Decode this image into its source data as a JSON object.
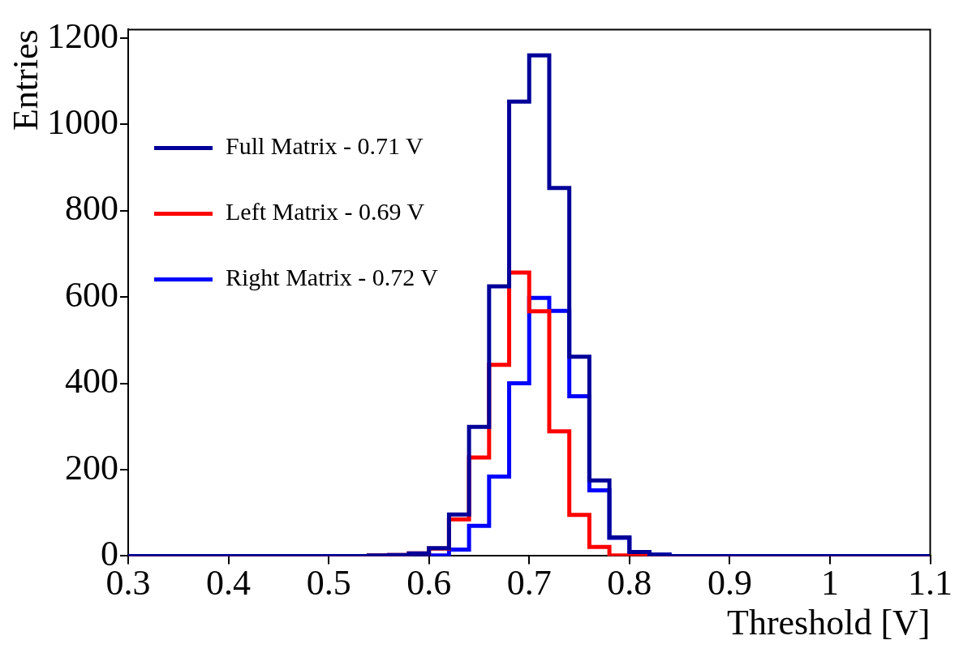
{
  "chart_data": {
    "type": "histogram",
    "xlabel": "Threshold [V]",
    "ylabel": "Entries",
    "bins": [
      0.3,
      0.32,
      0.34,
      0.36,
      0.38,
      0.4,
      0.42,
      0.44,
      0.46,
      0.48,
      0.5,
      0.52,
      0.54,
      0.56,
      0.58,
      0.6,
      0.62,
      0.64,
      0.66,
      0.68,
      0.7,
      0.72,
      0.74,
      0.76,
      0.78,
      0.8,
      0.82,
      0.84,
      0.86,
      0.88,
      0.9,
      0.92,
      0.94,
      0.96,
      0.98,
      1,
      1.02,
      1.04,
      1.06,
      1.08,
      1.1
    ],
    "series": [
      {
        "name": "Full Matrix - 0.71 V",
        "color": "#000099",
        "values": [
          0,
          0,
          0,
          0,
          0,
          0,
          0,
          0,
          0,
          0,
          0,
          0,
          1,
          2,
          6,
          18,
          96,
          299,
          625,
          1053,
          1160,
          853,
          462,
          175,
          43,
          9,
          3,
          0,
          0,
          0,
          0,
          0,
          0,
          0,
          0,
          0,
          0,
          0,
          0,
          0
        ]
      },
      {
        "name": "Left Matrix - 0.69 V",
        "color": "#ff0000",
        "values": [
          0,
          0,
          0,
          0,
          0,
          0,
          0,
          0,
          0,
          0,
          0,
          0,
          1,
          2,
          6,
          17,
          85,
          228,
          443,
          657,
          567,
          289,
          95,
          21,
          1,
          0,
          0,
          0,
          0,
          0,
          0,
          0,
          0,
          0,
          0,
          0,
          0,
          0,
          0,
          0
        ]
      },
      {
        "name": "Right Matrix - 0.72 V",
        "color": "#0000ff",
        "values": [
          0,
          0,
          0,
          0,
          0,
          0,
          0,
          0,
          0,
          0,
          0,
          0,
          0,
          0,
          0,
          1,
          15,
          70,
          184,
          400,
          598,
          568,
          370,
          152,
          42,
          9,
          3,
          0,
          0,
          0,
          0,
          0,
          0,
          0,
          0,
          0,
          0,
          0,
          0,
          0
        ]
      }
    ],
    "xlim": [
      0.3,
      1.1
    ],
    "xticks": [
      0.3,
      0.4,
      0.5,
      0.6,
      0.7,
      0.8,
      0.9,
      1,
      1.1
    ],
    "ylim": [
      0,
      1220
    ],
    "yticks": [
      0,
      200,
      400,
      600,
      800,
      1000,
      1200
    ],
    "grid": false,
    "legend": "top left"
  }
}
